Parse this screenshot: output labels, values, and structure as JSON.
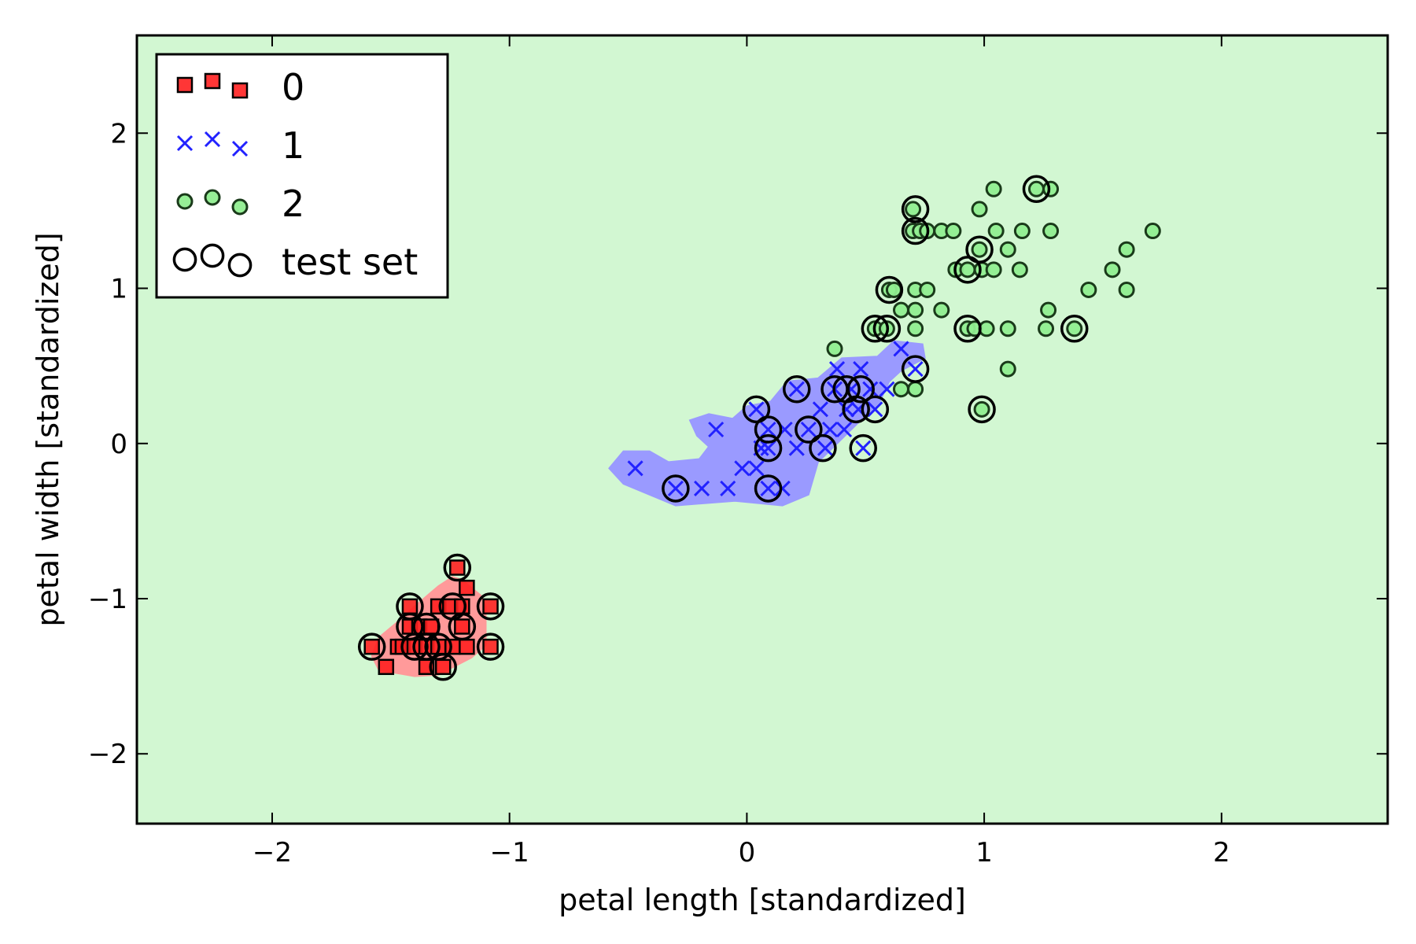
{
  "chart_data": {
    "type": "scatter",
    "xlabel": "petal length [standardized]",
    "ylabel": "petal width [standardized]",
    "xlim": [
      -2.57,
      2.7
    ],
    "ylim": [
      -2.45,
      2.63
    ],
    "xticks": [
      -2,
      -1,
      0,
      1,
      2
    ],
    "yticks": [
      -2,
      -1,
      0,
      1,
      2
    ],
    "xtick_labels": [
      "−2",
      "−1",
      "0",
      "1",
      "2"
    ],
    "ytick_labels": [
      "−2",
      "−1",
      "0",
      "1",
      "2"
    ],
    "grid": false,
    "legend_position": "top-left",
    "background_region_color": "#d2f7d2",
    "series": [
      {
        "name": "0",
        "marker": "square",
        "color": "#ff2020",
        "region_color": "#ff9a9a",
        "points": [
          [
            -1.58,
            -1.31
          ],
          [
            -1.52,
            -1.44
          ],
          [
            -1.47,
            -1.31
          ],
          [
            -1.45,
            -1.31
          ],
          [
            -1.42,
            -1.05
          ],
          [
            -1.42,
            -1.18
          ],
          [
            -1.4,
            -1.31
          ],
          [
            -1.38,
            -1.18
          ],
          [
            -1.35,
            -1.31
          ],
          [
            -1.35,
            -1.44
          ],
          [
            -1.33,
            -1.18
          ],
          [
            -1.3,
            -1.05
          ],
          [
            -1.3,
            -1.31
          ],
          [
            -1.28,
            -1.44
          ],
          [
            -1.25,
            -1.05
          ],
          [
            -1.24,
            -1.31
          ],
          [
            -1.22,
            -0.8
          ],
          [
            -1.2,
            -1.05
          ],
          [
            -1.2,
            -1.18
          ],
          [
            -1.18,
            -1.31
          ],
          [
            -1.18,
            -0.93
          ],
          [
            -1.08,
            -1.05
          ],
          [
            -1.08,
            -1.31
          ]
        ]
      },
      {
        "name": "1",
        "marker": "x",
        "color": "#2222ff",
        "region_color": "#9a9aff",
        "points": [
          [
            -0.47,
            -0.16
          ],
          [
            -0.3,
            -0.29
          ],
          [
            -0.19,
            -0.29
          ],
          [
            -0.13,
            0.09
          ],
          [
            -0.08,
            -0.29
          ],
          [
            -0.02,
            -0.16
          ],
          [
            0.04,
            -0.16
          ],
          [
            0.04,
            0.22
          ],
          [
            0.06,
            -0.03
          ],
          [
            0.09,
            0.09
          ],
          [
            0.09,
            -0.29
          ],
          [
            0.09,
            -0.03
          ],
          [
            0.15,
            -0.29
          ],
          [
            0.16,
            0.09
          ],
          [
            0.21,
            -0.03
          ],
          [
            0.21,
            0.35
          ],
          [
            0.26,
            0.09
          ],
          [
            0.31,
            0.22
          ],
          [
            0.33,
            -0.03
          ],
          [
            0.35,
            0.09
          ],
          [
            0.37,
            0.35
          ],
          [
            0.38,
            0.48
          ],
          [
            0.41,
            0.09
          ],
          [
            0.42,
            0.22
          ],
          [
            0.44,
            0.35
          ],
          [
            0.47,
            0.22
          ],
          [
            0.48,
            0.48
          ],
          [
            0.49,
            -0.03
          ],
          [
            0.52,
            0.35
          ],
          [
            0.54,
            0.22
          ],
          [
            0.59,
            0.35
          ],
          [
            0.65,
            0.61
          ],
          [
            0.71,
            0.48
          ]
        ]
      },
      {
        "name": "2",
        "marker": "circle",
        "color": "#90ee90",
        "region_color": "#d2f7d2",
        "points": [
          [
            0.37,
            0.61
          ],
          [
            0.54,
            0.74
          ],
          [
            0.59,
            0.74
          ],
          [
            0.6,
            0.99
          ],
          [
            0.62,
            0.99
          ],
          [
            0.65,
            0.35
          ],
          [
            0.65,
            0.86
          ],
          [
            0.7,
            1.37
          ],
          [
            0.7,
            1.51
          ],
          [
            0.71,
            0.99
          ],
          [
            0.71,
            0.35
          ],
          [
            0.71,
            0.86
          ],
          [
            0.71,
            0.74
          ],
          [
            0.73,
            1.37
          ],
          [
            0.76,
            0.99
          ],
          [
            0.76,
            1.37
          ],
          [
            0.82,
            1.37
          ],
          [
            0.82,
            0.86
          ],
          [
            0.87,
            1.37
          ],
          [
            0.88,
            1.12
          ],
          [
            0.93,
            1.12
          ],
          [
            0.93,
            0.74
          ],
          [
            0.96,
            0.74
          ],
          [
            0.98,
            1.51
          ],
          [
            0.98,
            1.25
          ],
          [
            0.99,
            1.12
          ],
          [
            0.99,
            0.22
          ],
          [
            1.01,
            0.74
          ],
          [
            1.04,
            1.64
          ],
          [
            1.04,
            1.12
          ],
          [
            1.05,
            1.37
          ],
          [
            1.1,
            1.25
          ],
          [
            1.1,
            0.74
          ],
          [
            1.1,
            0.48
          ],
          [
            1.15,
            1.12
          ],
          [
            1.16,
            1.37
          ],
          [
            1.22,
            1.64
          ],
          [
            1.26,
            0.74
          ],
          [
            1.27,
            0.86
          ],
          [
            1.28,
            1.37
          ],
          [
            1.28,
            1.64
          ],
          [
            1.38,
            0.74
          ],
          [
            1.44,
            0.99
          ],
          [
            1.54,
            1.12
          ],
          [
            1.6,
            1.25
          ],
          [
            1.6,
            0.99
          ],
          [
            1.71,
            1.37
          ]
        ]
      },
      {
        "name": "test set",
        "marker": "circle-open",
        "color": "#000000",
        "points": [
          [
            -1.58,
            -1.31
          ],
          [
            -1.42,
            -1.05
          ],
          [
            -1.42,
            -1.18
          ],
          [
            -1.4,
            -1.31
          ],
          [
            -1.35,
            -1.18
          ],
          [
            -1.35,
            -1.31
          ],
          [
            -1.3,
            -1.31
          ],
          [
            -1.28,
            -1.44
          ],
          [
            -1.24,
            -1.05
          ],
          [
            -1.22,
            -0.8
          ],
          [
            -1.2,
            -1.18
          ],
          [
            -1.08,
            -1.05
          ],
          [
            -1.08,
            -1.31
          ],
          [
            -0.3,
            -0.29
          ],
          [
            0.04,
            0.22
          ],
          [
            0.09,
            0.09
          ],
          [
            0.09,
            -0.03
          ],
          [
            0.09,
            -0.29
          ],
          [
            0.21,
            0.35
          ],
          [
            0.26,
            0.09
          ],
          [
            0.32,
            -0.03
          ],
          [
            0.37,
            0.35
          ],
          [
            0.42,
            0.35
          ],
          [
            0.46,
            0.22
          ],
          [
            0.48,
            0.35
          ],
          [
            0.49,
            -0.03
          ],
          [
            0.54,
            0.22
          ],
          [
            0.54,
            0.74
          ],
          [
            0.59,
            0.74
          ],
          [
            0.6,
            0.99
          ],
          [
            0.71,
            1.51
          ],
          [
            0.71,
            1.37
          ],
          [
            0.71,
            0.48
          ],
          [
            0.93,
            1.12
          ],
          [
            0.93,
            0.74
          ],
          [
            0.98,
            1.25
          ],
          [
            0.99,
            0.22
          ],
          [
            1.22,
            1.64
          ],
          [
            1.38,
            0.74
          ]
        ]
      }
    ],
    "regions": {
      "class_0": [
        [
          -1.58,
          -1.37
        ],
        [
          -1.55,
          -1.46
        ],
        [
          -1.4,
          -1.5
        ],
        [
          -1.3,
          -1.49
        ],
        [
          -1.16,
          -1.38
        ],
        [
          -1.1,
          -1.3
        ],
        [
          -1.1,
          -1.05
        ],
        [
          -1.12,
          -0.98
        ],
        [
          -1.2,
          -0.88
        ],
        [
          -1.24,
          -0.86
        ],
        [
          -1.3,
          -0.92
        ],
        [
          -1.4,
          -1.05
        ],
        [
          -1.48,
          -1.16
        ],
        [
          -1.55,
          -1.25
        ]
      ],
      "class_1": [
        [
          -0.58,
          -0.16
        ],
        [
          -0.52,
          -0.05
        ],
        [
          -0.41,
          -0.05
        ],
        [
          -0.33,
          -0.12
        ],
        [
          -0.2,
          -0.1
        ],
        [
          -0.16,
          -0.02
        ],
        [
          -0.21,
          0.05
        ],
        [
          -0.24,
          0.15
        ],
        [
          -0.16,
          0.19
        ],
        [
          -0.06,
          0.16
        ],
        [
          0.0,
          0.24
        ],
        [
          0.1,
          0.27
        ],
        [
          0.17,
          0.4
        ],
        [
          0.3,
          0.42
        ],
        [
          0.4,
          0.55
        ],
        [
          0.55,
          0.56
        ],
        [
          0.62,
          0.66
        ],
        [
          0.74,
          0.64
        ],
        [
          0.75,
          0.55
        ],
        [
          0.65,
          0.47
        ],
        [
          0.6,
          0.4
        ],
        [
          0.56,
          0.27
        ],
        [
          0.48,
          0.15
        ],
        [
          0.38,
          0.0
        ],
        [
          0.3,
          -0.12
        ],
        [
          0.26,
          -0.33
        ],
        [
          0.15,
          -0.4
        ],
        [
          -0.05,
          -0.37
        ],
        [
          -0.3,
          -0.4
        ],
        [
          -0.41,
          -0.33
        ],
        [
          -0.52,
          -0.26
        ]
      ]
    }
  }
}
